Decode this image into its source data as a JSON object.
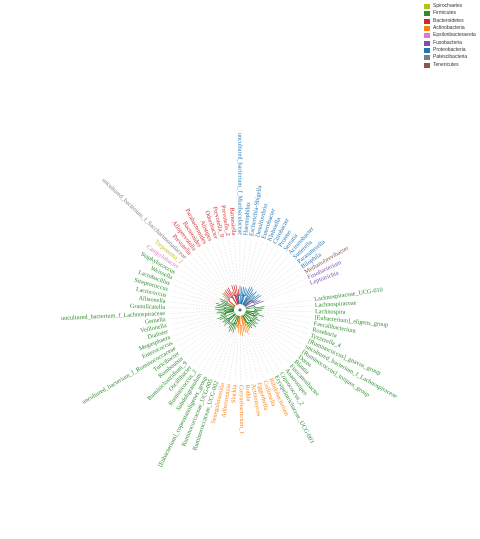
{
  "legend": {
    "items": [
      {
        "label": "Spirochaetes",
        "color": "#b5c40e"
      },
      {
        "label": "Firmicutes",
        "color": "#2e8b2e"
      },
      {
        "label": "Bacteroidetes",
        "color": "#d62728"
      },
      {
        "label": "Actinobacteria",
        "color": "#ff7f0e"
      },
      {
        "label": "Epsilonbacteraeota",
        "color": "#e377c2"
      },
      {
        "label": "Fusobacteria",
        "color": "#7b4fb5"
      },
      {
        "label": "Proteobacteria",
        "color": "#1f77b4"
      },
      {
        "label": "Patescibacteria",
        "color": "#7f7f7f"
      },
      {
        "label": "Tenericutes",
        "color": "#8c564b"
      }
    ]
  },
  "tree": {
    "tips": [
      {
        "label": "Lachnospiraceae_UCG-010",
        "group": "Firmicutes"
      },
      {
        "label": "Lachnospiraceae",
        "group": "Firmicutes"
      },
      {
        "label": "Lachnospira",
        "group": "Firmicutes"
      },
      {
        "label": "[Eubacterium]_eligens_group",
        "group": "Firmicutes"
      },
      {
        "label": "Faecalibacterium",
        "group": "Firmicutes"
      },
      {
        "label": "Roseburia",
        "group": "Firmicutes"
      },
      {
        "label": "Tyzzerella_4",
        "group": "Firmicutes"
      },
      {
        "label": "[Ruminococcus]_gnavus_group",
        "group": "Firmicutes"
      },
      {
        "label": "uncultured_bacterium_f_Lachnospiraceae",
        "group": "Firmicutes"
      },
      {
        "label": "[Ruminococcus]_torques_group",
        "group": "Firmicutes"
      },
      {
        "label": "Dorea",
        "group": "Firmicutes"
      },
      {
        "label": "Blautia",
        "group": "Firmicutes"
      },
      {
        "label": "Fusicatenibacter",
        "group": "Firmicutes"
      },
      {
        "label": "Anaerostipes",
        "group": "Firmicutes"
      },
      {
        "label": "Coprococcus_2",
        "group": "Firmicutes"
      },
      {
        "label": "Erysipelotrichaceae_UCG-003",
        "group": "Firmicutes"
      },
      {
        "label": "Bifidobacterium",
        "group": "Actinobacteria"
      },
      {
        "label": "Collinsella",
        "group": "Actinobacteria"
      },
      {
        "label": "Eggerthella",
        "group": "Actinobacteria"
      },
      {
        "label": "Actinomyces",
        "group": "Actinobacteria"
      },
      {
        "label": "Rothia",
        "group": "Actinobacteria"
      },
      {
        "label": "Corynebacterium_1",
        "group": "Actinobacteria"
      },
      {
        "label": "Slackia",
        "group": "Actinobacteria"
      },
      {
        "label": "Adlercreutzia",
        "group": "Actinobacteria"
      },
      {
        "label": "Senegalimassilia",
        "group": "Actinobacteria"
      },
      {
        "label": "Ruminococcaceae_UCG-002",
        "group": "Firmicutes"
      },
      {
        "label": "Ruminococcaceae_UCG-005",
        "group": "Firmicutes"
      },
      {
        "label": "[Eubacterium]_coprostanoligenes_group",
        "group": "Firmicutes"
      },
      {
        "label": "Subdoligranulum",
        "group": "Firmicutes"
      },
      {
        "label": "Ruminococcus_2",
        "group": "Firmicutes"
      },
      {
        "label": "Oscillibacter",
        "group": "Firmicutes"
      },
      {
        "label": "Ruminiclostridium_9",
        "group": "Firmicutes"
      },
      {
        "label": "Romboutsia",
        "group": "Firmicutes"
      },
      {
        "label": "Turicibacter",
        "group": "Firmicutes"
      },
      {
        "label": "uncultured_bacterium_f_Ruminococcaceae",
        "group": "Firmicutes"
      },
      {
        "label": "Enterococcus",
        "group": "Firmicutes"
      },
      {
        "label": "Megasphaera",
        "group": "Firmicutes"
      },
      {
        "label": "Dialister",
        "group": "Firmicutes"
      },
      {
        "label": "Veillonella",
        "group": "Firmicutes"
      },
      {
        "label": "Gemella",
        "group": "Firmicutes"
      },
      {
        "label": "uncultured_bacterium_f_Lachnospiraceae",
        "group": "Firmicutes"
      },
      {
        "label": "Granulicatella",
        "group": "Firmicutes"
      },
      {
        "label": "Allisonella",
        "group": "Firmicutes"
      },
      {
        "label": "Lactococcus",
        "group": "Firmicutes"
      },
      {
        "label": "Streptococcus",
        "group": "Firmicutes"
      },
      {
        "label": "Lactobacillus",
        "group": "Firmicutes"
      },
      {
        "label": "Weissella",
        "group": "Firmicutes"
      },
      {
        "label": "Staphylococcus",
        "group": "Firmicutes"
      },
      {
        "label": "Campylobacter",
        "group": "Epsilonbacteraeota"
      },
      {
        "label": "Treponema_2",
        "group": "Spirochaetes"
      },
      {
        "label": "uncultured_bacterium_f_Saccharimonadaceae",
        "group": "Patescibacteria"
      },
      {
        "label": "Prevotella",
        "group": "Bacteroidetes"
      },
      {
        "label": "Alloprevotella",
        "group": "Bacteroidetes"
      },
      {
        "label": "Bacteroides",
        "group": "Bacteroidetes"
      },
      {
        "label": "Parabacteroides",
        "group": "Bacteroidetes"
      },
      {
        "label": "Alistipes",
        "group": "Bacteroidetes"
      },
      {
        "label": "Odoribacter",
        "group": "Bacteroidetes"
      },
      {
        "label": "Prevotella_9",
        "group": "Bacteroidetes"
      },
      {
        "label": "Prevotella_2",
        "group": "Bacteroidetes"
      },
      {
        "label": "Barnesiella",
        "group": "Bacteroidetes"
      },
      {
        "label": "uncultured_bacterium_f_Muribaculaceae",
        "group": "Proteobacteria"
      },
      {
        "label": "Haemophilus",
        "group": "Proteobacteria"
      },
      {
        "label": "Escherichia-Shigella",
        "group": "Proteobacteria"
      },
      {
        "label": "Desulfovibrio",
        "group": "Proteobacteria"
      },
      {
        "label": "Enterobacter",
        "group": "Proteobacteria"
      },
      {
        "label": "Klebsiella",
        "group": "Proteobacteria"
      },
      {
        "label": "Citrobacter",
        "group": "Proteobacteria"
      },
      {
        "label": "Proteus",
        "group": "Proteobacteria"
      },
      {
        "label": "Serratia",
        "group": "Proteobacteria"
      },
      {
        "label": "Acinetobacter",
        "group": "Proteobacteria"
      },
      {
        "label": "Sutterella",
        "group": "Proteobacteria"
      },
      {
        "label": "Parasutterella",
        "group": "Proteobacteria"
      },
      {
        "label": "Bilophila",
        "group": "Proteobacteria"
      },
      {
        "label": "Methanobrevibacter",
        "group": "Tenericutes"
      },
      {
        "label": "Fusobacterium",
        "group": "Fusobacteria"
      },
      {
        "label": "Leptotrichia",
        "group": "Fusobacteria"
      }
    ]
  }
}
